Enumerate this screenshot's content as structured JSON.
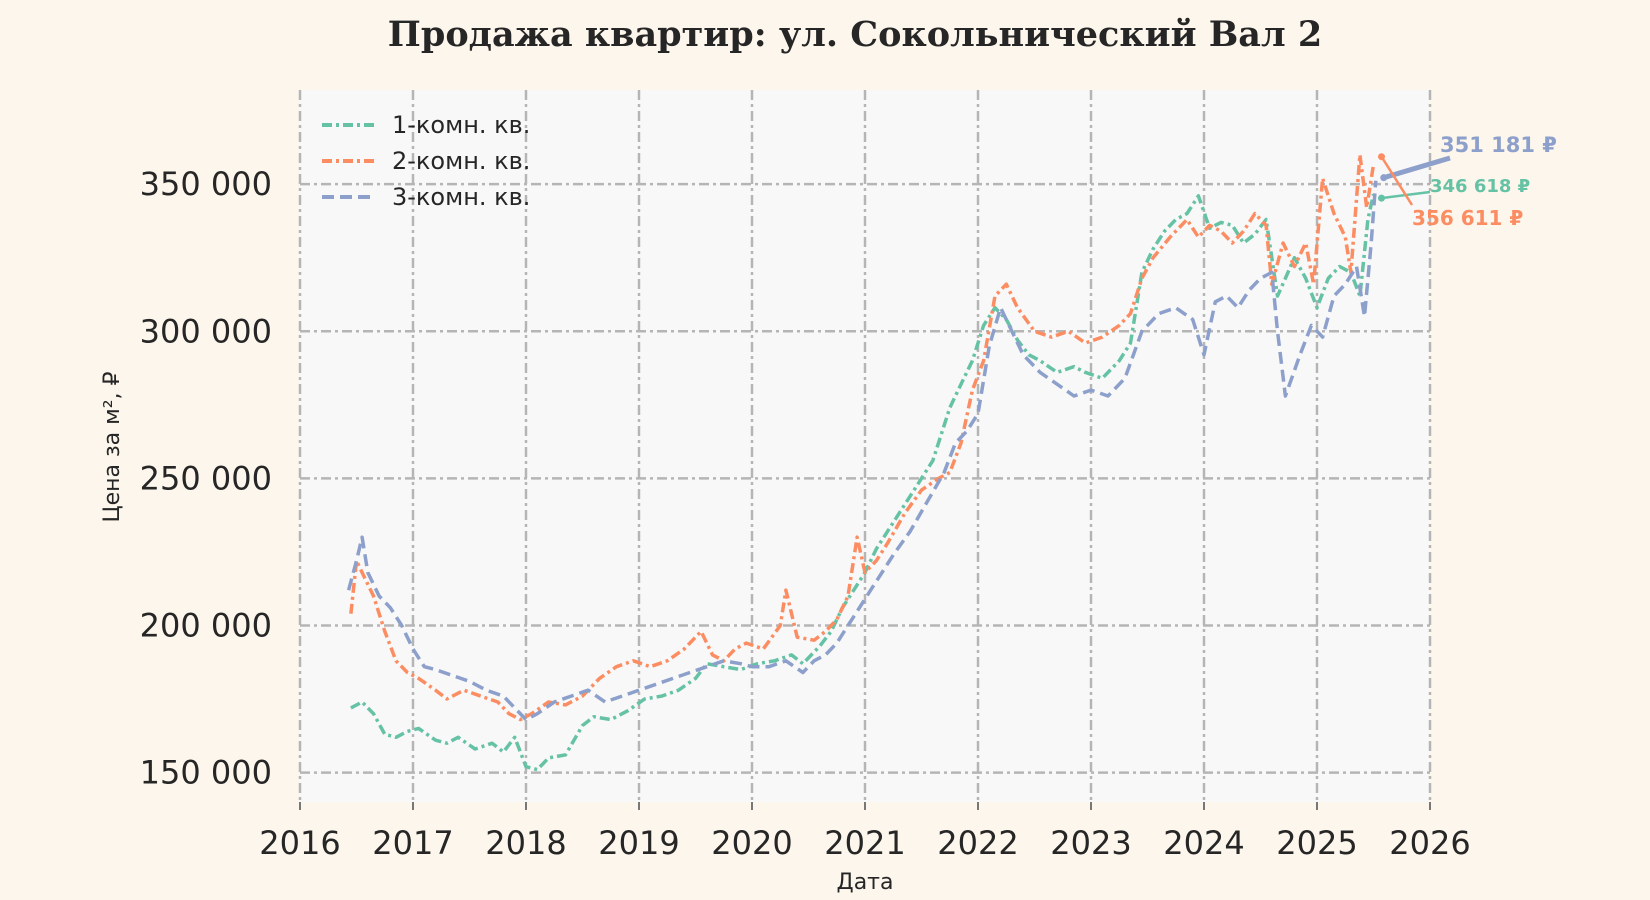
{
  "chart_data": {
    "type": "line",
    "title": "Продажа квартир: ул. Сокольнический Вал 2",
    "xlabel": "Дата",
    "ylabel": "Цена за м², ₽",
    "xlim": [
      2016.0,
      2026.0
    ],
    "ylim": [
      140000,
      382000
    ],
    "x_ticks": [
      "2016",
      "2017",
      "2018",
      "2019",
      "2020",
      "2021",
      "2022",
      "2023",
      "2024",
      "2025",
      "2026"
    ],
    "y_ticks": [
      {
        "value": 150000,
        "label": "150 000"
      },
      {
        "value": 200000,
        "label": "200 000"
      },
      {
        "value": 250000,
        "label": "250 000"
      },
      {
        "value": 300000,
        "label": "300 000"
      },
      {
        "value": 350000,
        "label": "350 000"
      }
    ],
    "grid": true,
    "legend_position": "top-left",
    "series": [
      {
        "name": "1-комн. кв.",
        "color": "#66c2a5",
        "dash": "dash-dot",
        "x": [
          2016.45,
          2016.55,
          2016.65,
          2016.75,
          2016.85,
          2016.95,
          2017.05,
          2017.2,
          2017.3,
          2017.4,
          2017.55,
          2017.7,
          2017.8,
          2017.9,
          2018.0,
          2018.1,
          2018.2,
          2018.35,
          2018.5,
          2018.6,
          2018.75,
          2018.9,
          2019.05,
          2019.2,
          2019.35,
          2019.5,
          2019.6,
          2019.75,
          2019.9,
          2020.05,
          2020.2,
          2020.35,
          2020.45,
          2020.6,
          2020.7,
          2020.8,
          2020.9,
          2021.0,
          2021.1,
          2021.2,
          2021.3,
          2021.45,
          2021.6,
          2021.75,
          2021.85,
          2021.95,
          2022.05,
          2022.15,
          2022.25,
          2022.35,
          2022.45,
          2022.55,
          2022.7,
          2022.85,
          2022.95,
          2023.1,
          2023.25,
          2023.35,
          2023.45,
          2023.55,
          2023.65,
          2023.75,
          2023.85,
          2023.95,
          2024.05,
          2024.15,
          2024.25,
          2024.35,
          2024.45,
          2024.55,
          2024.65,
          2024.72,
          2024.8,
          2024.9,
          2025.0,
          2025.1,
          2025.2,
          2025.3,
          2025.38,
          2025.45,
          2025.5
        ],
        "y": [
          172000,
          174000,
          170000,
          163000,
          162000,
          164000,
          165000,
          161000,
          160000,
          162000,
          158000,
          160000,
          157000,
          162000,
          152000,
          151000,
          155000,
          156000,
          166000,
          169000,
          168000,
          171000,
          175000,
          176000,
          178000,
          182000,
          187000,
          186000,
          185000,
          187000,
          188000,
          190000,
          187000,
          193000,
          198000,
          206000,
          212000,
          218000,
          226000,
          232000,
          238000,
          247000,
          256000,
          274000,
          282000,
          290000,
          302000,
          308000,
          304000,
          297000,
          292000,
          290000,
          286000,
          288000,
          286000,
          284000,
          290000,
          296000,
          320000,
          328000,
          334000,
          338000,
          340000,
          346000,
          335000,
          337000,
          336000,
          330000,
          333000,
          338000,
          312000,
          318000,
          325000,
          318000,
          308000,
          318000,
          322000,
          320000,
          312000,
          338000,
          346618
        ]
      },
      {
        "name": "2-комн. кв.",
        "color": "#fc8d62",
        "dash": "dash-dot",
        "x": [
          2016.45,
          2016.5,
          2016.55,
          2016.65,
          2016.75,
          2016.85,
          2016.95,
          2017.05,
          2017.2,
          2017.3,
          2017.45,
          2017.6,
          2017.75,
          2017.85,
          2017.95,
          2018.05,
          2018.2,
          2018.35,
          2018.5,
          2018.65,
          2018.8,
          2018.95,
          2019.1,
          2019.25,
          2019.4,
          2019.55,
          2019.65,
          2019.75,
          2019.85,
          2019.95,
          2020.1,
          2020.25,
          2020.3,
          2020.4,
          2020.55,
          2020.65,
          2020.75,
          2020.85,
          2020.93,
          2021.0,
          2021.1,
          2021.2,
          2021.35,
          2021.5,
          2021.65,
          2021.75,
          2021.85,
          2021.95,
          2022.05,
          2022.15,
          2022.25,
          2022.35,
          2022.5,
          2022.65,
          2022.8,
          2022.95,
          2023.1,
          2023.25,
          2023.35,
          2023.45,
          2023.55,
          2023.7,
          2023.85,
          2023.95,
          2024.05,
          2024.15,
          2024.25,
          2024.35,
          2024.45,
          2024.55,
          2024.6,
          2024.7,
          2024.8,
          2024.9,
          2024.97,
          2025.05,
          2025.15,
          2025.25,
          2025.3,
          2025.38,
          2025.44,
          2025.5
        ],
        "y": [
          204000,
          222000,
          218000,
          210000,
          198000,
          188000,
          184000,
          182000,
          178000,
          175000,
          178000,
          176000,
          174000,
          170000,
          168000,
          170000,
          174000,
          173000,
          176000,
          182000,
          186000,
          188000,
          186000,
          188000,
          192000,
          198000,
          190000,
          188000,
          192000,
          194000,
          192000,
          200000,
          212000,
          196000,
          195000,
          198000,
          202000,
          210000,
          230000,
          218000,
          222000,
          228000,
          238000,
          246000,
          250000,
          252000,
          262000,
          280000,
          290000,
          312000,
          316000,
          308000,
          300000,
          298000,
          300000,
          296000,
          298000,
          302000,
          306000,
          318000,
          325000,
          332000,
          338000,
          332000,
          336000,
          334000,
          330000,
          334000,
          340000,
          336000,
          316000,
          330000,
          322000,
          330000,
          316000,
          352000,
          340000,
          332000,
          320000,
          360000,
          342000,
          356611
        ]
      },
      {
        "name": "3-комн. кв.",
        "color": "#8da0cb",
        "dash": "dashed",
        "x": [
          2016.43,
          2016.5,
          2016.55,
          2016.6,
          2016.7,
          2016.8,
          2016.9,
          2017.0,
          2017.1,
          2017.2,
          2017.35,
          2017.5,
          2017.65,
          2017.8,
          2017.9,
          2018.0,
          2018.1,
          2018.25,
          2018.4,
          2018.55,
          2018.7,
          2018.85,
          2019.0,
          2019.15,
          2019.3,
          2019.45,
          2019.6,
          2019.75,
          2019.9,
          2020.0,
          2020.15,
          2020.3,
          2020.45,
          2020.55,
          2020.65,
          2020.75,
          2020.85,
          2020.95,
          2021.05,
          2021.15,
          2021.25,
          2021.4,
          2021.55,
          2021.7,
          2021.8,
          2021.9,
          2022.0,
          2022.1,
          2022.2,
          2022.3,
          2022.4,
          2022.55,
          2022.7,
          2022.85,
          2023.0,
          2023.15,
          2023.3,
          2023.45,
          2023.6,
          2023.75,
          2023.9,
          2024.0,
          2024.1,
          2024.2,
          2024.3,
          2024.4,
          2024.5,
          2024.6,
          2024.65,
          2024.72,
          2024.85,
          2024.95,
          2025.05,
          2025.15,
          2025.25,
          2025.35,
          2025.42,
          2025.48,
          2025.52
        ],
        "y": [
          212000,
          222000,
          230000,
          218000,
          210000,
          206000,
          200000,
          192000,
          186000,
          185000,
          183000,
          181000,
          178000,
          176000,
          172000,
          168000,
          170000,
          174000,
          176000,
          178000,
          174000,
          176000,
          178000,
          180000,
          182000,
          184000,
          186000,
          188000,
          187000,
          186000,
          186000,
          188000,
          184000,
          188000,
          190000,
          194000,
          200000,
          206000,
          212000,
          218000,
          224000,
          232000,
          242000,
          252000,
          262000,
          266000,
          272000,
          295000,
          308000,
          300000,
          292000,
          286000,
          282000,
          278000,
          280000,
          278000,
          284000,
          300000,
          306000,
          308000,
          304000,
          292000,
          310000,
          312000,
          308000,
          314000,
          318000,
          320000,
          300000,
          278000,
          292000,
          302000,
          298000,
          312000,
          316000,
          322000,
          305000,
          330000,
          351181
        ]
      }
    ],
    "annotations": [
      {
        "text": "351 181 ₽",
        "color": "#8da0cb",
        "series": "3-комн. кв."
      },
      {
        "text": "346 618 ₽",
        "color": "#66c2a5",
        "series": "1-комн. кв."
      },
      {
        "text": "356 611 ₽",
        "color": "#fc8d62",
        "series": "2-комн. кв."
      }
    ]
  }
}
